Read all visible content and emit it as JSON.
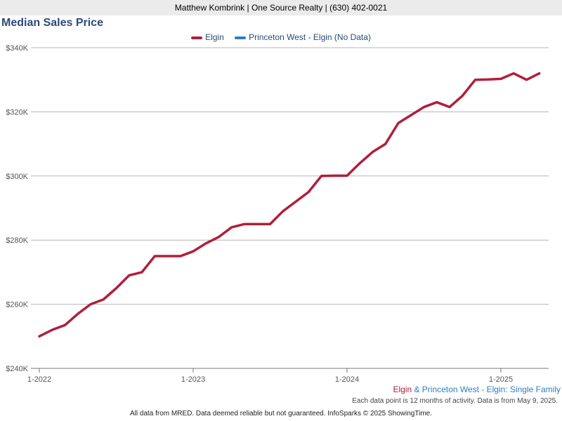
{
  "header": {
    "banner": "Matthew Kombrink | One Source Realty | (630) 402-0021"
  },
  "chart_data": {
    "type": "line",
    "title": "Median Sales Price",
    "series": [
      {
        "name": "Elgin",
        "color": "#b01f3a",
        "x": [
          "2022-01",
          "2022-02",
          "2022-03",
          "2022-04",
          "2022-05",
          "2022-06",
          "2022-07",
          "2022-08",
          "2022-09",
          "2022-10",
          "2022-11",
          "2022-12",
          "2023-01",
          "2023-02",
          "2023-03",
          "2023-04",
          "2023-05",
          "2023-06",
          "2023-07",
          "2023-08",
          "2023-09",
          "2023-10",
          "2023-11",
          "2023-12",
          "2024-01",
          "2024-02",
          "2024-03",
          "2024-04",
          "2024-05",
          "2024-06",
          "2024-07",
          "2024-08",
          "2024-09",
          "2024-10",
          "2024-11",
          "2024-12",
          "2025-01",
          "2025-02",
          "2025-03",
          "2025-04"
        ],
        "values": [
          250000,
          252000,
          253500,
          257000,
          260000,
          261500,
          265000,
          269000,
          270000,
          275000,
          275000,
          275000,
          276500,
          279000,
          281000,
          284000,
          285000,
          285000,
          285000,
          289000,
          292000,
          295000,
          300000,
          300100,
          300100,
          304000,
          307500,
          310000,
          316500,
          319000,
          321500,
          323000,
          321500,
          325000,
          330000,
          330100,
          330300,
          332000,
          330000,
          332000
        ]
      },
      {
        "name": "Princeton West - Elgin (No Data)",
        "color": "#2a7fc1",
        "x": [],
        "values": []
      }
    ],
    "x_ticks": [
      "1-2022",
      "1-2023",
      "1-2024",
      "1-2025"
    ],
    "y_ticks": [
      "$240K",
      "$260K",
      "$280K",
      "$300K",
      "$320K",
      "$340K"
    ],
    "ylim": [
      240000,
      340000
    ],
    "grid": true,
    "legend_position": "top-center"
  },
  "footer": {
    "subtitle_area1": "Elgin",
    "subtitle_amp": " & ",
    "subtitle_area2": "Princeton West - Elgin",
    "subtitle_rest": ": Single Family",
    "subtitle_colors": {
      "area1": "#b01f3a",
      "area2": "#2a7fc1"
    },
    "note": "Each data point is 12 months of activity. Data is from May 9, 2025.",
    "source": "All data from MRED. Data deemed reliable but not guaranteed. InfoSparks © 2025 ShowingTime."
  }
}
